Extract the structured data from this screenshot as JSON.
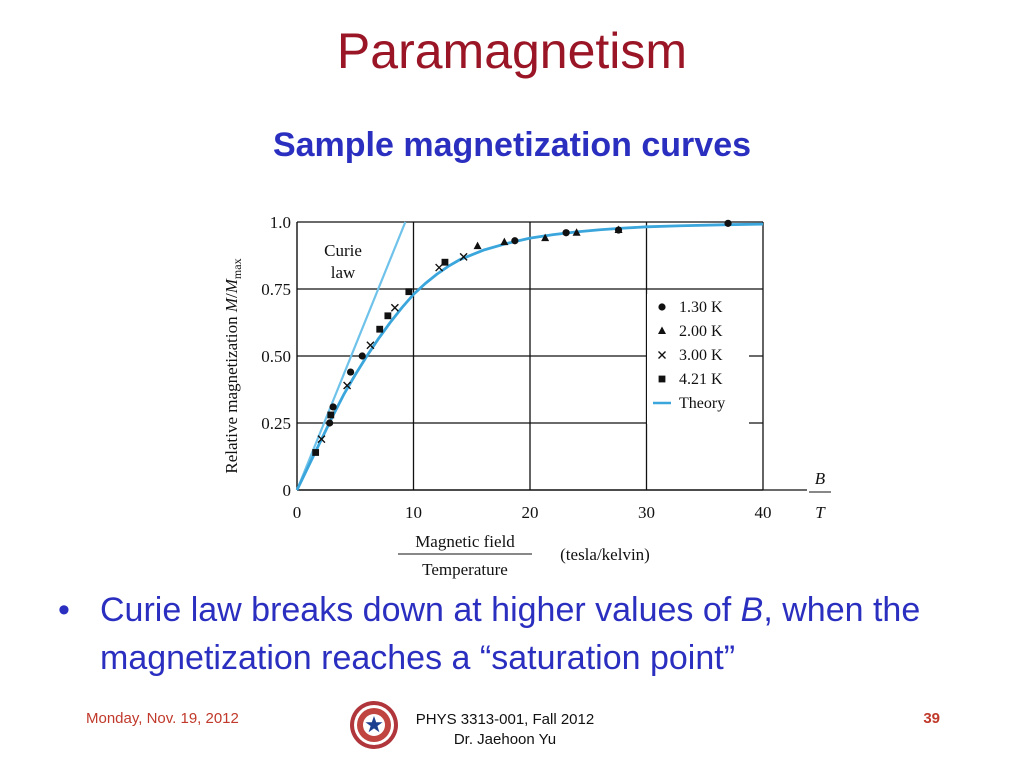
{
  "slide": {
    "title": "Paramagnetism",
    "subtitle": "Sample magnetization curves",
    "bullet_prefix": "Curie law breaks down at higher values of ",
    "bullet_italic": "B",
    "bullet_suffix": ", when the magnetization reaches a “saturation point”",
    "bullet_symbol": "•"
  },
  "footer": {
    "date": "Monday, Nov. 19, 2012",
    "course": "PHYS 3313-001, Fall 2012",
    "instructor": "Dr. Jaehoon Yu",
    "page": "39"
  },
  "colors": {
    "title": "#9a1526",
    "subtitle": "#2b2fc0",
    "theory": "#3aa6dc",
    "curie": "#6fc2ea",
    "footer_accent": "#c0392b"
  },
  "chart_data": {
    "type": "scatter",
    "xlim": [
      0,
      40
    ],
    "ylim": [
      0,
      1.0
    ],
    "x_ticks": [
      0,
      10,
      20,
      30,
      40
    ],
    "x_tick_labels": [
      "0",
      "10",
      "20",
      "30",
      "40"
    ],
    "y_ticks": [
      0,
      0.25,
      0.5,
      0.75,
      1.0
    ],
    "y_tick_labels": [
      "0",
      "0.25",
      "0.50",
      "0.75",
      "1.0"
    ],
    "grid": true,
    "ylabel_text": "Relative magnetization",
    "ylabel_M": "M",
    "ylabel_Mmax": "M",
    "ylabel_sub": "max",
    "xlabel_numerator": "Magnetic field",
    "xlabel_denominator": "Temperature",
    "xlabel_units": "(tesla/kelvin)",
    "axis_end_numerator": "B",
    "axis_end_denominator": "T",
    "curie_label_line1": "Curie",
    "curie_label_line2": "law",
    "legend_position": "right",
    "series": [
      {
        "name": "1.30 K",
        "marker": "circle",
        "points": [
          [
            2.8,
            0.25
          ],
          [
            3.1,
            0.31
          ],
          [
            4.6,
            0.44
          ],
          [
            5.6,
            0.5
          ],
          [
            18.7,
            0.93
          ],
          [
            23.1,
            0.96
          ],
          [
            27.6,
            0.97
          ],
          [
            37.0,
            0.995
          ]
        ]
      },
      {
        "name": "2.00 K",
        "marker": "triangle",
        "points": [
          [
            15.5,
            0.91
          ],
          [
            17.8,
            0.925
          ],
          [
            21.3,
            0.94
          ],
          [
            24.0,
            0.96
          ],
          [
            27.6,
            0.97
          ]
        ]
      },
      {
        "name": "3.00 K",
        "marker": "x",
        "points": [
          [
            2.1,
            0.19
          ],
          [
            4.3,
            0.39
          ],
          [
            6.3,
            0.54
          ],
          [
            8.4,
            0.68
          ],
          [
            12.2,
            0.83
          ],
          [
            14.3,
            0.87
          ]
        ]
      },
      {
        "name": "4.21 K",
        "marker": "square",
        "points": [
          [
            1.6,
            0.14
          ],
          [
            2.9,
            0.28
          ],
          [
            7.1,
            0.6
          ],
          [
            7.8,
            0.65
          ],
          [
            9.6,
            0.74
          ],
          [
            12.7,
            0.85
          ]
        ]
      },
      {
        "name": "Theory",
        "marker": "line",
        "points": [
          [
            0,
            0
          ],
          [
            1,
            0.09
          ],
          [
            2,
            0.18
          ],
          [
            3,
            0.27
          ],
          [
            4,
            0.355
          ],
          [
            5,
            0.43
          ],
          [
            6,
            0.5
          ],
          [
            7,
            0.565
          ],
          [
            8,
            0.625
          ],
          [
            9,
            0.68
          ],
          [
            10,
            0.73
          ],
          [
            11,
            0.77
          ],
          [
            12,
            0.805
          ],
          [
            13,
            0.835
          ],
          [
            14,
            0.86
          ],
          [
            16,
            0.895
          ],
          [
            18,
            0.92
          ],
          [
            20,
            0.94
          ],
          [
            22,
            0.953
          ],
          [
            24,
            0.963
          ],
          [
            26,
            0.971
          ],
          [
            28,
            0.977
          ],
          [
            30,
            0.982
          ],
          [
            33,
            0.986
          ],
          [
            37,
            0.99
          ],
          [
            40,
            0.992
          ]
        ]
      },
      {
        "name": "Curie law",
        "marker": "line",
        "points": [
          [
            0,
            0
          ],
          [
            9.3,
            1.0
          ]
        ]
      }
    ]
  }
}
